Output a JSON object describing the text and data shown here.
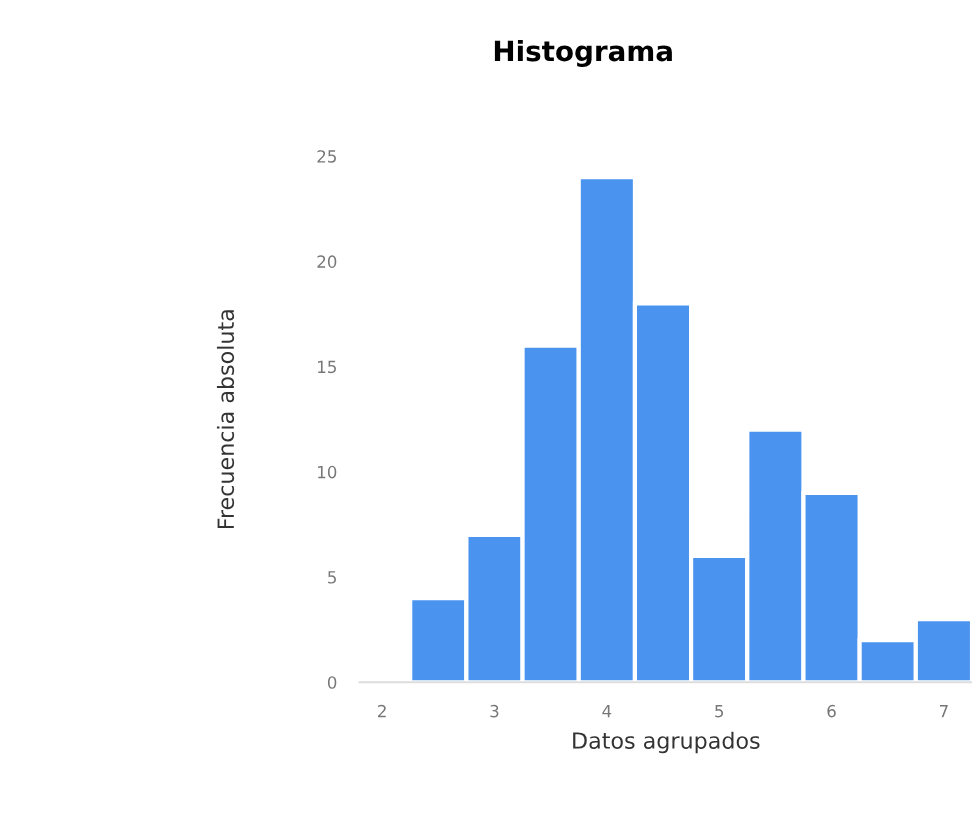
{
  "chart_data": {
    "type": "histogram",
    "title": "Histograma",
    "xlabel": "Datos agrupados",
    "ylabel": "Frecuencia absoluta",
    "bins": [
      2.25,
      2.75,
      3.25,
      3.75,
      4.25,
      4.75,
      5.25,
      5.75,
      6.25,
      6.75,
      7.25
    ],
    "values": [
      4,
      7,
      16,
      24,
      18,
      6,
      12,
      9,
      2,
      3
    ],
    "color": "#4a94f0",
    "xlim": [
      1.8,
      7.25
    ],
    "ylim": [
      0,
      25
    ],
    "xticks": [
      2,
      3,
      4,
      5,
      6,
      7
    ],
    "yticks": [
      0,
      5,
      10,
      15,
      20,
      25
    ],
    "grid": false,
    "legend": false
  }
}
